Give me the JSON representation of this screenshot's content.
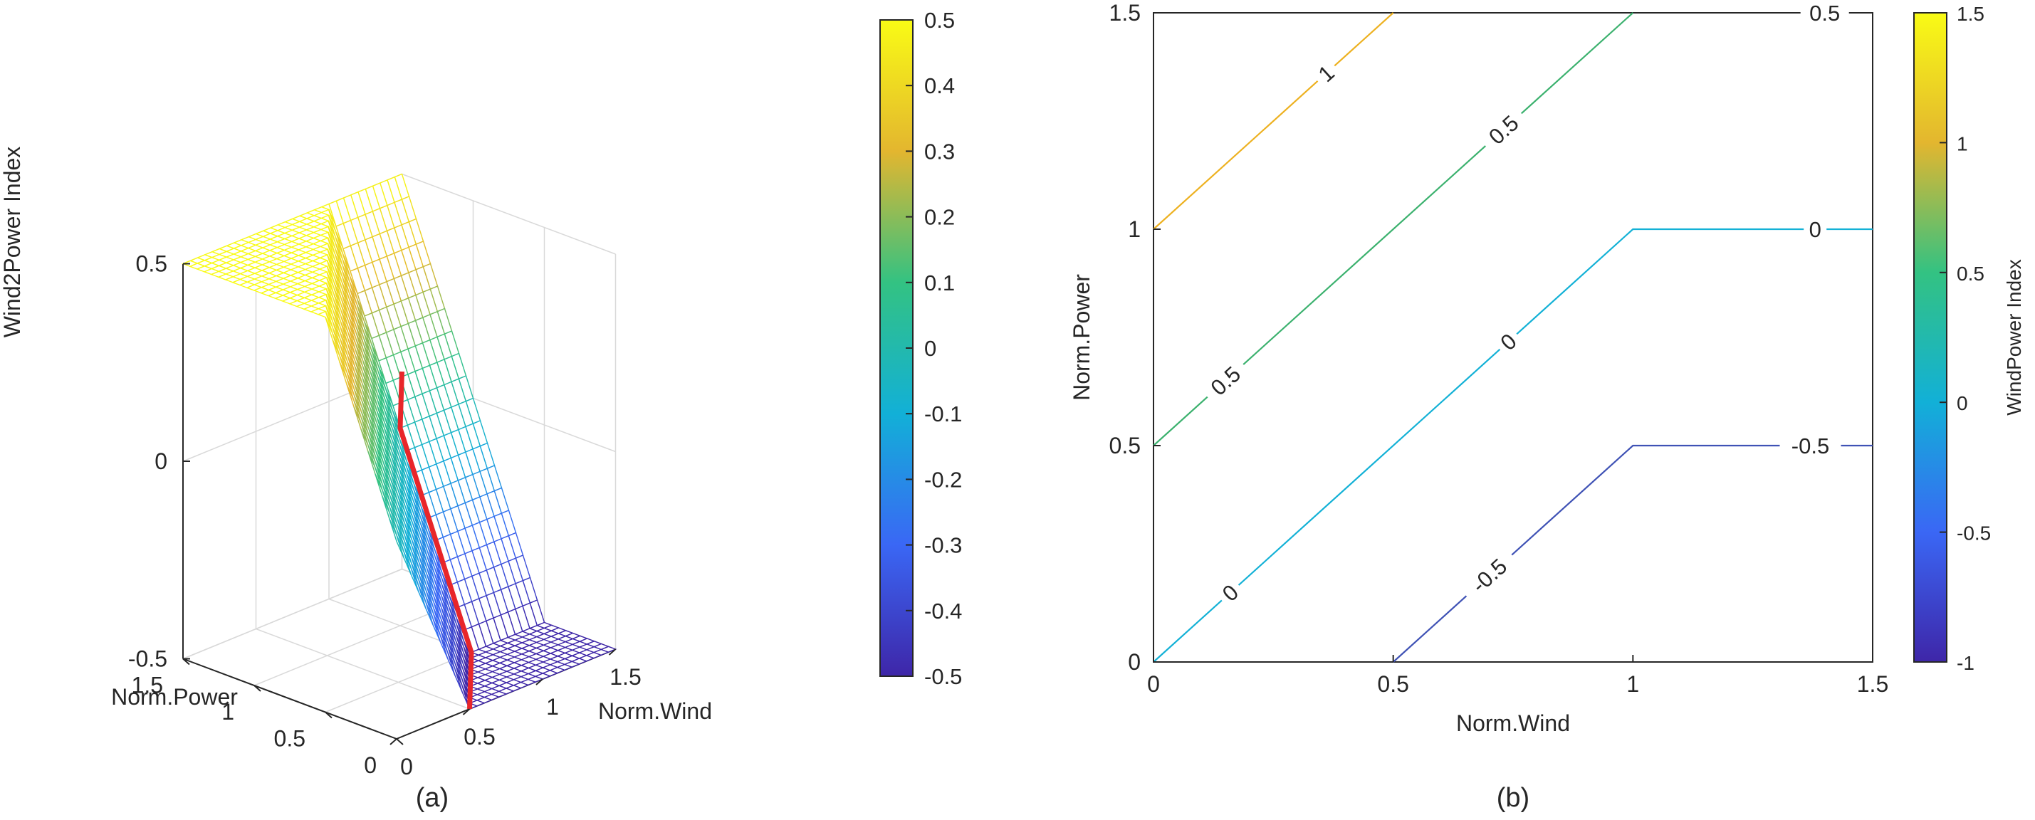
{
  "chart_data": [
    {
      "panel": "(a)",
      "type": "surface",
      "zlabel": "Wind2Power Index",
      "xlabel": "Norm.Wind",
      "ylabel": "Norm.Power",
      "x_ticks": [
        "0",
        "0.5",
        "1",
        "1.5"
      ],
      "y_ticks": [
        "0",
        "0.5",
        "1",
        "1.5"
      ],
      "z_ticks": [
        "-0.5",
        "0",
        "0.5"
      ],
      "xlim": [
        0,
        1.5
      ],
      "ylim": [
        0,
        1.5
      ],
      "zlim": [
        -0.5,
        0.5
      ],
      "surface_definition": "z = clip(p - min(w,1), -0.5, 0.5) over w in [0,1.5], p in [0,1.5]",
      "grid_resolution": 0.05,
      "highlight_path": {
        "color": "#e8262a",
        "points": [
          [
            0.5,
            0,
            -0.5
          ],
          [
            1,
            0.5,
            -0.5
          ],
          [
            1,
            1,
            0
          ],
          [
            1.5,
            1.5,
            0
          ]
        ]
      },
      "colorbar": {
        "label": "",
        "range": [
          -0.5,
          0.5
        ],
        "ticks": [
          "0.5",
          "0.4",
          "0.3",
          "0.2",
          "0.1",
          "0",
          "-0.1",
          "-0.2",
          "-0.3",
          "-0.4",
          "-0.5"
        ]
      }
    },
    {
      "panel": "(b)",
      "type": "contour",
      "xlabel": "Norm.Wind",
      "ylabel": "Norm.Power",
      "x_ticks": [
        "0",
        "0.5",
        "1",
        "1.5"
      ],
      "y_ticks": [
        "0",
        "0.5",
        "1",
        "1.5"
      ],
      "xlim": [
        0,
        1.5
      ],
      "ylim": [
        0,
        1.5
      ],
      "contours": [
        {
          "level": 1,
          "color": "#edb120",
          "points": [
            [
              0,
              1
            ],
            [
              0.5,
              1.5
            ]
          ],
          "labels": [
            {
              "text": "1",
              "at": [
                0.36,
                1.36
              ]
            }
          ]
        },
        {
          "level": 0.5,
          "color": "#3bb16e",
          "points": [
            [
              0,
              0.5
            ],
            [
              1,
              1.5
            ]
          ],
          "labels": [
            {
              "text": "0.5",
              "at": [
                0.15,
                0.65
              ]
            },
            {
              "text": "0.5",
              "at": [
                0.73,
                1.23
              ]
            },
            {
              "text": "0.5",
              "at": [
                1.4,
                1.5
              ]
            }
          ]
        },
        {
          "level": 0,
          "color": "#13b1d6",
          "points": [
            [
              0,
              0
            ],
            [
              1,
              1
            ],
            [
              1.5,
              1
            ]
          ],
          "labels": [
            {
              "text": "0",
              "at": [
                0.16,
                0.16
              ]
            },
            {
              "text": "0",
              "at": [
                0.74,
                0.74
              ]
            },
            {
              "text": "0",
              "at": [
                1.38,
                1.0
              ]
            }
          ]
        },
        {
          "level": -0.5,
          "color": "#3f52b5",
          "points": [
            [
              0.5,
              0
            ],
            [
              1,
              0.5
            ],
            [
              1.5,
              0.5
            ]
          ],
          "labels": [
            {
              "text": "-0.5",
              "at": [
                0.7,
                0.2
              ]
            },
            {
              "text": "-0.5",
              "at": [
                1.37,
                0.5
              ]
            }
          ]
        }
      ],
      "colorbar": {
        "label": "WindPower Index",
        "range": [
          -1,
          1.5
        ],
        "ticks": [
          "1.5",
          "1",
          "0.5",
          "0",
          "-0.5",
          "-1"
        ]
      }
    }
  ],
  "captions": {
    "a": "(a)",
    "b": "(b)"
  }
}
